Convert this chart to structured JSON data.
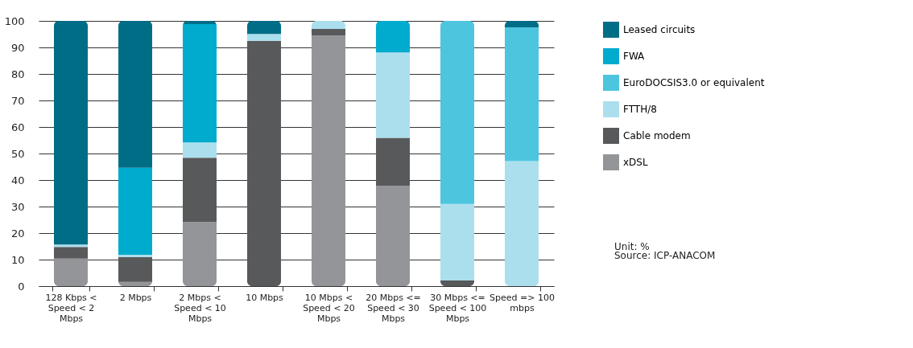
{
  "chart_data": {
    "type": "bar",
    "stacked": true,
    "categories": [
      "128 Kbps < Speed < 2 Mbps",
      "2 Mbps",
      "2 Mbps < Speed < 10 Mbps",
      "10 Mbps",
      "10 Mbps < Speed < 20 Mbps",
      "20 Mbps <= Speed < 30 Mbps",
      "30 Mbps <= Speed < 100 Mbps",
      "Speed => 100 mbps"
    ],
    "series": [
      {
        "name": "xDSL",
        "color": "#939598",
        "values": [
          10.4,
          1.6,
          24.2,
          0,
          94.5,
          37.9,
          0,
          0
        ]
      },
      {
        "name": "Cable modem",
        "color": "#58595b",
        "values": [
          4.4,
          9.4,
          24.2,
          92.5,
          2.5,
          18.0,
          2.1,
          0
        ]
      },
      {
        "name": "FTTH/8",
        "color": "#abdfed",
        "values": [
          0.9,
          0.8,
          5.8,
          2.6,
          3.0,
          32.2,
          28.9,
          47.1
        ]
      },
      {
        "name": "EuroDOCSIS3.0 or equivalent",
        "color": "#4dc5df",
        "values": [
          0,
          0,
          0,
          0,
          0,
          0,
          69.0,
          50.5
        ]
      },
      {
        "name": "FWA",
        "color": "#00abcd",
        "values": [
          0,
          32.8,
          44.6,
          0,
          0,
          11.9,
          0,
          0
        ]
      },
      {
        "name": "Leased circuits",
        "color": "#006d87",
        "values": [
          84.3,
          55.4,
          1.2,
          4.9,
          0,
          0,
          0,
          2.4
        ]
      }
    ],
    "ylim": [
      0,
      100
    ],
    "yticks": [
      0,
      10,
      20,
      30,
      40,
      50,
      60,
      70,
      80,
      90,
      100
    ],
    "grid": "y",
    "legend": "right",
    "annotations": [
      "Unit: %",
      "Source: ICP-ANACOM"
    ]
  }
}
